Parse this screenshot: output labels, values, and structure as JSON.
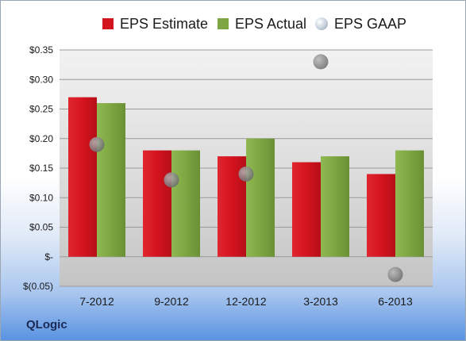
{
  "brand": "QLogic",
  "colors": {
    "estimate": "#d4141f",
    "actual": "#7da642",
    "gaap": "#8a8a8a",
    "plot_background": "#dcdcdc"
  },
  "chart_data": {
    "type": "bar",
    "categories": [
      "7-2012",
      "9-2012",
      "12-2012",
      "3-2013",
      "6-2013"
    ],
    "series": [
      {
        "name": "EPS Estimate",
        "kind": "bar",
        "values": [
          0.27,
          0.18,
          0.17,
          0.16,
          0.14
        ]
      },
      {
        "name": "EPS Actual",
        "kind": "bar",
        "values": [
          0.26,
          0.18,
          0.2,
          0.17,
          0.18
        ]
      },
      {
        "name": "EPS GAAP",
        "kind": "scatter",
        "values": [
          0.19,
          0.13,
          0.14,
          0.33,
          -0.03
        ]
      }
    ],
    "ylim": [
      -0.05,
      0.35
    ],
    "yticks": [
      {
        "value": 0.35,
        "label": "$0.35"
      },
      {
        "value": 0.3,
        "label": "$0.30"
      },
      {
        "value": 0.25,
        "label": "$0.25"
      },
      {
        "value": 0.2,
        "label": "$0.20"
      },
      {
        "value": 0.15,
        "label": "$0.15"
      },
      {
        "value": 0.1,
        "label": "$0.10"
      },
      {
        "value": 0.05,
        "label": "$0.05"
      },
      {
        "value": 0.0,
        "label": "$-"
      },
      {
        "value": -0.05,
        "label": "$(0.05)"
      }
    ],
    "grid": true,
    "legend_position": "top"
  }
}
